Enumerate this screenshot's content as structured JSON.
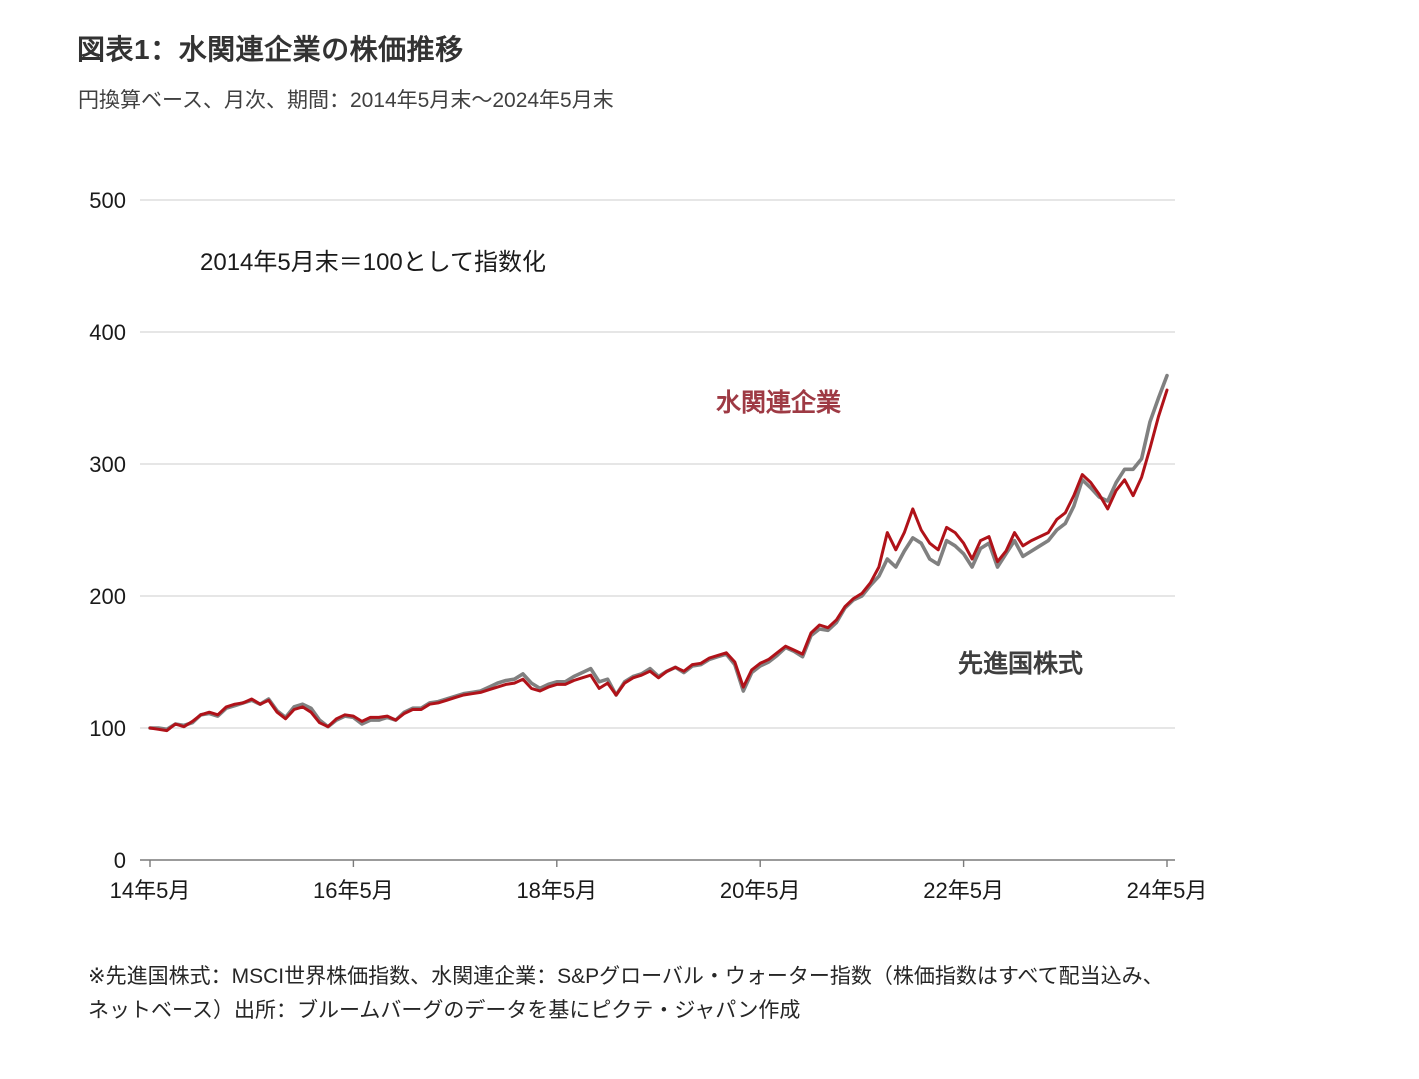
{
  "header": {
    "title": "図表1：水関連企業の株価推移",
    "subtitle": "円換算ベース、月次、期間：2014年5月末～2024年5月末"
  },
  "footnote": {
    "line1": "※先進国株式：MSCI世界株価指数、水関連企業：S&Pグローバル・ウォーター指数（株価指数はすべて配当込み、",
    "line2": "ネットベース）出所：ブルームバーグのデータを基にピクテ・ジャパン作成"
  },
  "chart_data": {
    "type": "line",
    "annotation": "2014年5月末＝100として指数化",
    "x_start": "2014-05",
    "x_end": "2024-05",
    "x_frequency": "monthly",
    "x_tick_labels": [
      "14年5月",
      "16年5月",
      "18年5月",
      "20年5月",
      "22年5月",
      "24年5月"
    ],
    "x_tick_indices": [
      0,
      24,
      48,
      72,
      96,
      120
    ],
    "y_ticks": [
      0,
      100,
      200,
      300,
      400,
      500
    ],
    "ylim": [
      0,
      500
    ],
    "grid": "horizontal",
    "legend_position": "inline-labels",
    "colors": {
      "grid": "#cccccc",
      "axis": "#7a7a7a",
      "title": "#333333",
      "annotation": "#1a1a1a"
    },
    "series": [
      {
        "name": "先進国株式",
        "color": "#808080",
        "label_color": "#3f3f3f",
        "values": [
          100,
          100,
          99,
          103,
          102,
          104,
          110,
          111,
          109,
          115,
          117,
          119,
          121,
          118,
          122,
          113,
          108,
          116,
          118,
          115,
          106,
          101,
          106,
          109,
          108,
          103,
          106,
          106,
          108,
          106,
          112,
          115,
          115,
          119,
          120,
          122,
          124,
          126,
          127,
          128,
          131,
          134,
          136,
          137,
          141,
          134,
          130,
          133,
          135,
          135,
          139,
          142,
          145,
          135,
          137,
          125,
          135,
          139,
          141,
          145,
          139,
          143,
          146,
          142,
          147,
          148,
          152,
          154,
          156,
          148,
          128,
          142,
          147,
          150,
          155,
          161,
          158,
          154,
          170,
          175,
          174,
          180,
          191,
          197,
          200,
          208,
          215,
          228,
          222,
          234,
          244,
          240,
          228,
          224,
          242,
          238,
          232,
          222,
          236,
          240,
          222,
          232,
          242,
          230,
          234,
          238,
          242,
          250,
          255,
          268,
          288,
          282,
          275,
          272,
          286,
          296,
          296,
          304,
          332,
          350,
          367
        ]
      },
      {
        "name": "水関連企業",
        "color": "#b01219",
        "label_color": "#9e3a44",
        "values": [
          100,
          99,
          98,
          103,
          101,
          105,
          110,
          112,
          110,
          116,
          118,
          119,
          122,
          118,
          121,
          112,
          107,
          114,
          116,
          112,
          104,
          101,
          107,
          110,
          109,
          105,
          108,
          108,
          109,
          106,
          111,
          114,
          114,
          118,
          119,
          121,
          123,
          125,
          126,
          127,
          129,
          131,
          133,
          134,
          137,
          130,
          128,
          131,
          133,
          133,
          136,
          138,
          140,
          130,
          134,
          125,
          134,
          138,
          140,
          143,
          138,
          143,
          146,
          143,
          148,
          149,
          153,
          155,
          157,
          150,
          131,
          144,
          149,
          152,
          157,
          162,
          159,
          156,
          172,
          178,
          176,
          182,
          192,
          198,
          202,
          210,
          222,
          248,
          235,
          248,
          266,
          250,
          240,
          235,
          252,
          248,
          240,
          228,
          242,
          245,
          226,
          234,
          248,
          238,
          242,
          245,
          248,
          258,
          263,
          276,
          292,
          286,
          277,
          266,
          280,
          288,
          276,
          290,
          312,
          336,
          356
        ]
      }
    ]
  }
}
